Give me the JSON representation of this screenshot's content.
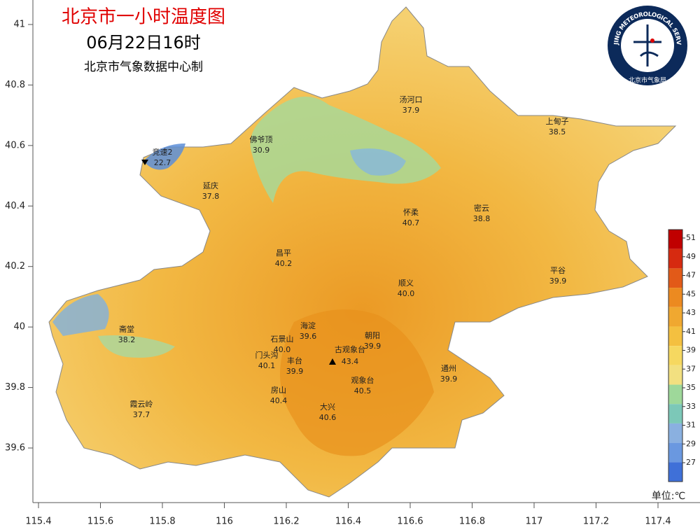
{
  "header": {
    "title": "北京市一小时温度图",
    "time": "06月22日16时",
    "producer": "北京市气象数据中心制"
  },
  "logo": {
    "ring_text": "BEIJING METEOROLOGICAL SERVICE",
    "inner_text": "北京市气象局"
  },
  "axes": {
    "lon_ticks": [
      115.4,
      115.6,
      115.8,
      116,
      116.2,
      116.4,
      116.6,
      116.8,
      117,
      117.2,
      117.4
    ],
    "lat_ticks": [
      41,
      40.8,
      40.6,
      40.4,
      40.2,
      40,
      39.8,
      39.6
    ]
  },
  "stations": [
    {
      "name": "汤河口",
      "value": 37.9
    },
    {
      "name": "上甸子",
      "value": 38.5
    },
    {
      "name": "佛爷顶",
      "value": 30.9
    },
    {
      "name": "竞速2",
      "value": 22.7
    },
    {
      "name": "延庆",
      "value": 37.8
    },
    {
      "name": "怀柔",
      "value": 40.7
    },
    {
      "name": "密云",
      "value": 38.8
    },
    {
      "name": "昌平",
      "value": 40.2
    },
    {
      "name": "平谷",
      "value": 39.9
    },
    {
      "name": "顺义",
      "value": 40.0,
      "value_label": "40.0"
    },
    {
      "name": "海淀",
      "value": 39.6
    },
    {
      "name": "朝阳",
      "value": 39.9
    },
    {
      "name": "石景山",
      "value": 40.0,
      "value_label": "40.0"
    },
    {
      "name": "古观象台",
      "value": 43.4
    },
    {
      "name": "门头沟",
      "value": 40.1
    },
    {
      "name": "丰台",
      "value": 39.9
    },
    {
      "name": "通州",
      "value": 39.9
    },
    {
      "name": "观象台",
      "value": 40.5
    },
    {
      "name": "房山",
      "value": 40.4
    },
    {
      "name": "大兴",
      "value": 40.6
    },
    {
      "name": "霞云岭",
      "value": 37.7
    },
    {
      "name": "斋堂",
      "value": 38.2
    }
  ],
  "colorbar": {
    "ticks": [
      51,
      49,
      47,
      45,
      43,
      41,
      39,
      37,
      35,
      33,
      31,
      29,
      27
    ],
    "colors": [
      "#c00000",
      "#d62a10",
      "#e25a18",
      "#ec8a20",
      "#f0a830",
      "#f4c040",
      "#f6d860",
      "#f2e080",
      "#9ed89a",
      "#7cc8b8",
      "#8ab0e0",
      "#6a98e0",
      "#3f70d8"
    ],
    "unit": "单位:℃"
  }
}
